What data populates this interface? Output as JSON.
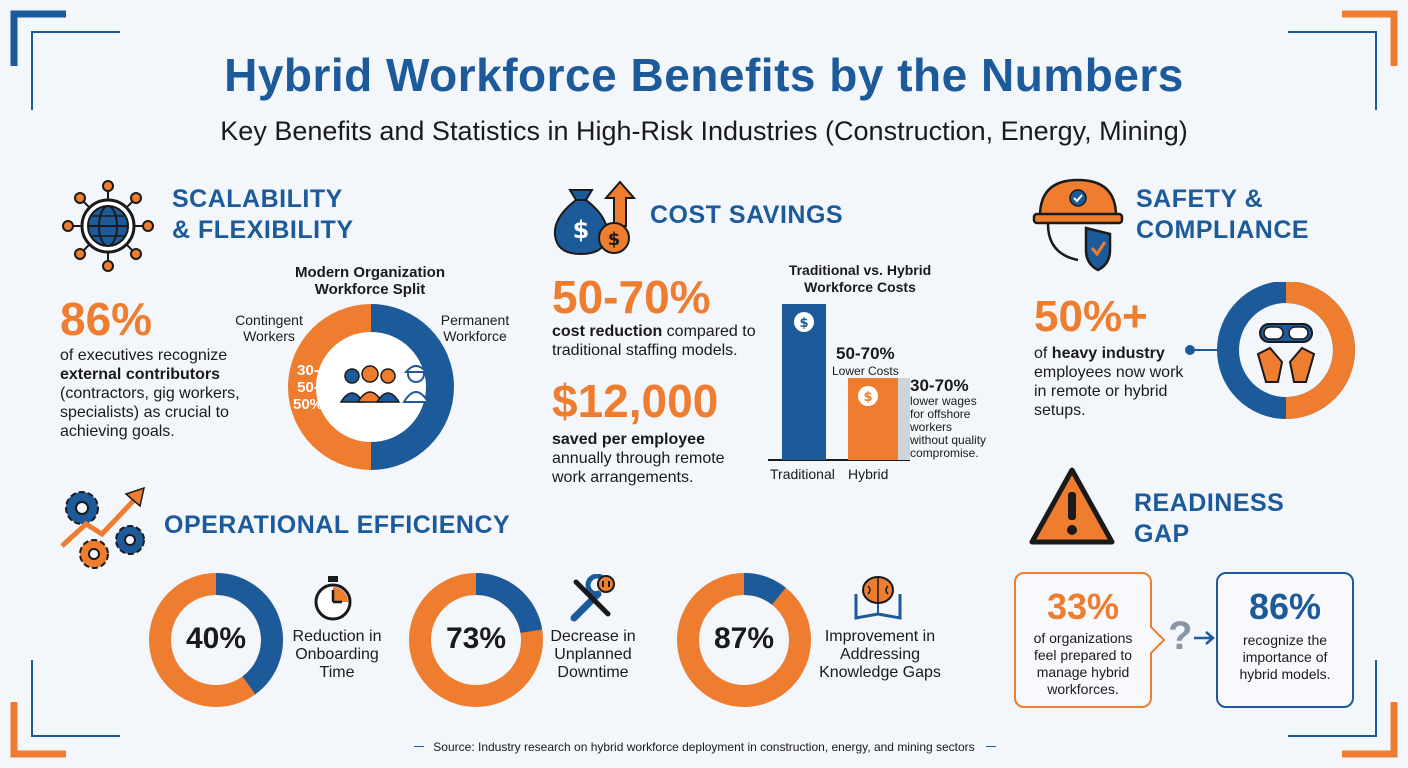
{
  "header": {
    "title": "Hybrid Workforce Benefits by the Numbers",
    "subtitle": "Key Benefits and Statistics in High-Risk Industries (Construction, Energy, Mining)"
  },
  "scalability": {
    "heading_line1": "SCALABILITY",
    "heading_line2": "& FLEXIBILITY",
    "stat": "86%",
    "text_line1": "of executives recognize",
    "text_bold": "external contributors",
    "text_line3": "(contractors, gig workers,",
    "text_line4": "specialists) as crucial to",
    "text_line5": "achieving goals.",
    "donut_title_line1": "Modern Organization",
    "donut_title_line2": "Workforce Split",
    "label_left_line1": "Contingent",
    "label_left_line2": "Workers",
    "label_right_line1": "Permanent",
    "label_right_line2": "Workforce",
    "donut_value_line1": "30-",
    "donut_value_line2": "50-",
    "donut_value_line3": "50%"
  },
  "cost": {
    "heading": "COST SAVINGS",
    "stat1": "50-70%",
    "stat1_bold": "cost reduction",
    "stat1_rest": " compared to",
    "stat1_line2": "traditional staffing models.",
    "stat2": "$12,000",
    "stat2_bold": "saved per employee",
    "stat2_line2": "annually through remote",
    "stat2_line3": "work arrangements.",
    "chart_title_line1": "Traditional vs. Hybrid",
    "chart_title_line2": "Workforce Costs",
    "bar1_label": "Traditional",
    "bar2_label": "Hybrid",
    "callout1_big": "50-70%",
    "callout1_small": "Lower Costs",
    "callout2_big": "30-70%",
    "callout2_line1": "lower wages",
    "callout2_line2": "for offshore",
    "callout2_line3": "workers",
    "callout2_line4": "without quality",
    "callout2_line5": "compromise."
  },
  "safety": {
    "heading_line1": "SAFETY &",
    "heading_line2": "COMPLIANCE",
    "stat": "50%+",
    "text_pre": "of ",
    "text_bold": "heavy industry",
    "text_line2": "employees now work",
    "text_line3": "in remote or hybrid",
    "text_line4": "setups."
  },
  "efficiency": {
    "heading": "OPERATIONAL EFFICIENCY",
    "items": [
      {
        "value": "40%",
        "line1": "Reduction in",
        "line2": "Onboarding",
        "line3": "Time"
      },
      {
        "value": "73%",
        "line1": "Decrease in",
        "line2": "Unplanned",
        "line3": "Downtime"
      },
      {
        "value": "87%",
        "line1": "Improvement in",
        "line2": "Addressing",
        "line3": "Knowledge Gaps"
      }
    ]
  },
  "readiness": {
    "heading_line1": "READINESS",
    "heading_line2": "GAP",
    "card1_value": "33%",
    "card1_line1": "of organizations",
    "card1_line2": "feel prepared to",
    "card1_line3": "manage hybrid",
    "card1_line4": "workforces.",
    "question": "?",
    "card2_value": "86%",
    "card2_line1": "recognize the",
    "card2_line2": "importance of",
    "card2_line3": "hybrid models."
  },
  "footer": {
    "source": "Source: Industry research on hybrid workforce deployment in construction, energy, and mining sectors"
  },
  "colors": {
    "blue": "#1d5a9a",
    "orange": "#ee7d30"
  }
}
